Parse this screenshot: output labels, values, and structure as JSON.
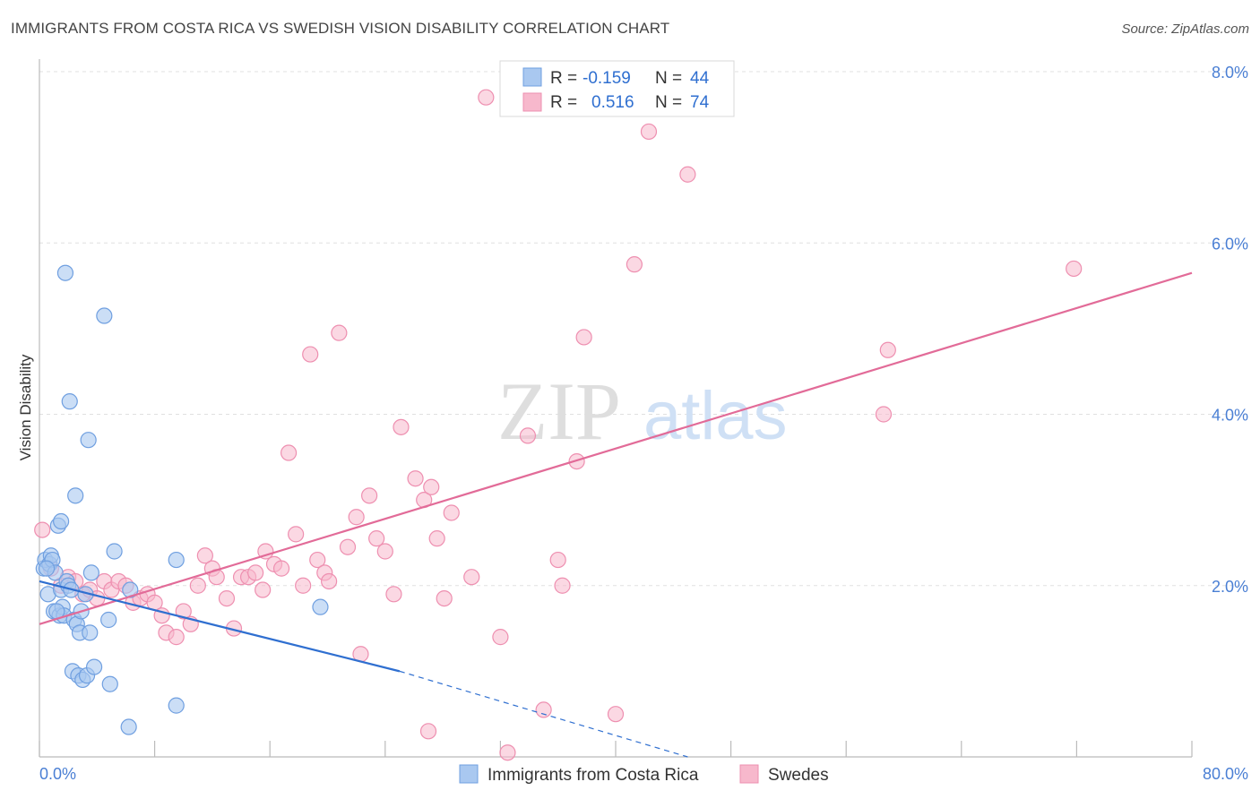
{
  "title": "IMMIGRANTS FROM COSTA RICA VS SWEDISH VISION DISABILITY CORRELATION CHART",
  "source": "Source: ZipAtlas.com",
  "watermark": {
    "part1": "ZIP",
    "part2": "atlas"
  },
  "colors": {
    "blue_fill": "#a9c8f0",
    "blue_stroke": "#6f9fe0",
    "blue_line": "#2f6fd0",
    "pink_fill": "#f7b8cc",
    "pink_stroke": "#ee8fb0",
    "pink_line": "#e26b98",
    "tick_text": "#4a7fd4",
    "grid": "#e0e0e0"
  },
  "legend": {
    "rows": [
      {
        "r_label": "R =",
        "r_value": "-0.159",
        "n_label": "N =",
        "n_value": "44"
      },
      {
        "r_label": "R =",
        "r_value": "0.516",
        "n_label": "N =",
        "n_value": "74"
      }
    ]
  },
  "chart_data": {
    "type": "scatter",
    "title": "IMMIGRANTS FROM COSTA RICA VS SWEDISH VISION DISABILITY CORRELATION CHART",
    "xlabel": "",
    "ylabel": "Vision Disability",
    "xlim": [
      0,
      80
    ],
    "ylim": [
      0,
      8
    ],
    "x_tick_labels": [
      "0.0%",
      "80.0%"
    ],
    "y_tick_labels": [
      "2.0%",
      "4.0%",
      "6.0%",
      "8.0%"
    ],
    "y_ticks": [
      2,
      4,
      6,
      8
    ],
    "grid": true,
    "legend_position": "top-center",
    "series": [
      {
        "name": "Immigrants from Costa Rica",
        "color": "#a9c8f0",
        "points": [
          [
            0.3,
            2.2
          ],
          [
            0.4,
            2.3
          ],
          [
            0.6,
            1.9
          ],
          [
            0.7,
            2.25
          ],
          [
            0.8,
            2.35
          ],
          [
            0.9,
            2.3
          ],
          [
            1.0,
            1.7
          ],
          [
            1.1,
            2.15
          ],
          [
            1.3,
            2.7
          ],
          [
            1.4,
            1.65
          ],
          [
            1.5,
            1.95
          ],
          [
            1.6,
            1.75
          ],
          [
            1.7,
            1.65
          ],
          [
            1.8,
            5.65
          ],
          [
            1.9,
            2.05
          ],
          [
            2.0,
            2.0
          ],
          [
            2.1,
            4.15
          ],
          [
            2.3,
            1.0
          ],
          [
            2.4,
            1.6
          ],
          [
            2.5,
            3.05
          ],
          [
            2.6,
            1.55
          ],
          [
            2.7,
            0.95
          ],
          [
            2.8,
            1.45
          ],
          [
            2.9,
            1.7
          ],
          [
            3.0,
            0.9
          ],
          [
            3.2,
            1.9
          ],
          [
            3.3,
            0.95
          ],
          [
            3.4,
            3.7
          ],
          [
            3.5,
            1.45
          ],
          [
            3.6,
            2.15
          ],
          [
            3.8,
            1.05
          ],
          [
            4.5,
            5.15
          ],
          [
            4.8,
            1.6
          ],
          [
            4.9,
            0.85
          ],
          [
            5.2,
            2.4
          ],
          [
            6.2,
            0.35
          ],
          [
            6.3,
            1.95
          ],
          [
            9.5,
            0.6
          ],
          [
            9.5,
            2.3
          ],
          [
            19.5,
            1.75
          ],
          [
            1.5,
            2.75
          ],
          [
            0.5,
            2.2
          ],
          [
            2.2,
            1.95
          ],
          [
            1.2,
            1.7
          ]
        ]
      },
      {
        "name": "Swedes",
        "color": "#f7b8cc",
        "points": [
          [
            0.2,
            2.65
          ],
          [
            0.8,
            2.2
          ],
          [
            1.5,
            2.0
          ],
          [
            2.0,
            2.1
          ],
          [
            2.5,
            2.05
          ],
          [
            3.0,
            1.9
          ],
          [
            3.5,
            1.95
          ],
          [
            4.0,
            1.85
          ],
          [
            4.5,
            2.05
          ],
          [
            5.0,
            1.95
          ],
          [
            5.5,
            2.05
          ],
          [
            6.0,
            2.0
          ],
          [
            6.5,
            1.8
          ],
          [
            7.0,
            1.85
          ],
          [
            7.5,
            1.9
          ],
          [
            8.0,
            1.8
          ],
          [
            8.5,
            1.65
          ],
          [
            8.8,
            1.45
          ],
          [
            9.5,
            1.4
          ],
          [
            10.0,
            1.7
          ],
          [
            10.5,
            1.55
          ],
          [
            11.0,
            2.0
          ],
          [
            11.5,
            2.35
          ],
          [
            12.0,
            2.2
          ],
          [
            12.3,
            2.1
          ],
          [
            13.0,
            1.85
          ],
          [
            13.5,
            1.5
          ],
          [
            14.0,
            2.1
          ],
          [
            14.5,
            2.1
          ],
          [
            15.0,
            2.15
          ],
          [
            15.5,
            1.95
          ],
          [
            15.7,
            2.4
          ],
          [
            16.3,
            2.25
          ],
          [
            16.8,
            2.2
          ],
          [
            17.3,
            3.55
          ],
          [
            17.8,
            2.6
          ],
          [
            18.3,
            2.0
          ],
          [
            18.8,
            4.7
          ],
          [
            19.3,
            2.3
          ],
          [
            19.8,
            2.15
          ],
          [
            20.1,
            2.05
          ],
          [
            20.8,
            4.95
          ],
          [
            21.4,
            2.45
          ],
          [
            22.0,
            2.8
          ],
          [
            22.3,
            1.2
          ],
          [
            22.9,
            3.05
          ],
          [
            23.4,
            2.55
          ],
          [
            24.0,
            2.4
          ],
          [
            24.6,
            1.9
          ],
          [
            25.1,
            3.85
          ],
          [
            26.1,
            3.25
          ],
          [
            26.7,
            3.0
          ],
          [
            27.2,
            3.15
          ],
          [
            27.6,
            2.55
          ],
          [
            28.1,
            1.85
          ],
          [
            28.6,
            2.85
          ],
          [
            30.0,
            2.1
          ],
          [
            31.0,
            7.7
          ],
          [
            32.0,
            1.4
          ],
          [
            32.5,
            0.05
          ],
          [
            33.9,
            3.75
          ],
          [
            35.0,
            0.55
          ],
          [
            36.0,
            2.3
          ],
          [
            36.3,
            2.0
          ],
          [
            37.3,
            3.45
          ],
          [
            37.8,
            4.9
          ],
          [
            40.0,
            0.5
          ],
          [
            41.3,
            5.75
          ],
          [
            42.3,
            7.3
          ],
          [
            45.0,
            6.8
          ],
          [
            58.6,
            4.0
          ],
          [
            58.9,
            4.75
          ],
          [
            71.8,
            5.7
          ],
          [
            27.0,
            0.3
          ]
        ]
      }
    ],
    "trend_lines": [
      {
        "series": "Immigrants from Costa Rica",
        "x0": 0,
        "y0": 2.05,
        "x1": 25,
        "y1": 1.0,
        "dashed_to_x": 45,
        "dashed_to_y": 0.0
      },
      {
        "series": "Swedes",
        "x0": 0,
        "y0": 1.55,
        "x1": 80,
        "y1": 5.65
      }
    ]
  },
  "bottom_legend": [
    {
      "label": "Immigrants from Costa Rica"
    },
    {
      "label": "Swedes"
    }
  ]
}
